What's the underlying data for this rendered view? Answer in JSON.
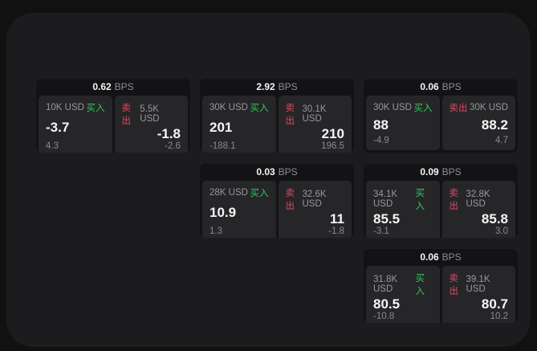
{
  "colors": {
    "buy_green": "#34c85a",
    "sell_red": "#e04a5f",
    "panel_bg": "#1c1c1e",
    "card_bg": "#131315",
    "pane_bg": "#262629"
  },
  "cards": [
    {
      "bps_value": "0.62",
      "bps_unit": "BPS",
      "buy": {
        "notional": "10K USD",
        "label": "买入",
        "price": "-3.7",
        "sub": "4.3"
      },
      "sell": {
        "label": "卖出",
        "notional": "5.5K USD",
        "price": "-1.8",
        "sub": "-2.6"
      }
    },
    {
      "bps_value": "2.92",
      "bps_unit": "BPS",
      "buy": {
        "notional": "30K USD",
        "label": "买入",
        "price": "201",
        "sub": "-188.1"
      },
      "sell": {
        "label": "卖出",
        "notional": "30.1K USD",
        "price": "210",
        "sub": "196.5"
      }
    },
    {
      "bps_value": "0.06",
      "bps_unit": "BPS",
      "buy": {
        "notional": "30K USD",
        "label": "买入",
        "price": "88",
        "sub": "-4.9"
      },
      "sell": {
        "label": "卖出",
        "notional": "30K USD",
        "price": "88.2",
        "sub": "4.7"
      }
    },
    {
      "bps_value": "0.03",
      "bps_unit": "BPS",
      "buy": {
        "notional": "28K USD",
        "label": "买入",
        "price": "10.9",
        "sub": "1.3"
      },
      "sell": {
        "label": "卖出",
        "notional": "32.6K USD",
        "price": "11",
        "sub": "-1.8"
      }
    },
    {
      "bps_value": "0.09",
      "bps_unit": "BPS",
      "buy": {
        "notional": "34.1K USD",
        "label": "买入",
        "price": "85.5",
        "sub": "-3.1"
      },
      "sell": {
        "label": "卖出",
        "notional": "32.8K USD",
        "price": "85.8",
        "sub": "3.0"
      }
    },
    {
      "bps_value": "0.06",
      "bps_unit": "BPS",
      "buy": {
        "notional": "31.8K USD",
        "label": "买入",
        "price": "80.5",
        "sub": "-10.8"
      },
      "sell": {
        "label": "卖出",
        "notional": "39.1K USD",
        "price": "80.7",
        "sub": "10.2"
      }
    }
  ]
}
